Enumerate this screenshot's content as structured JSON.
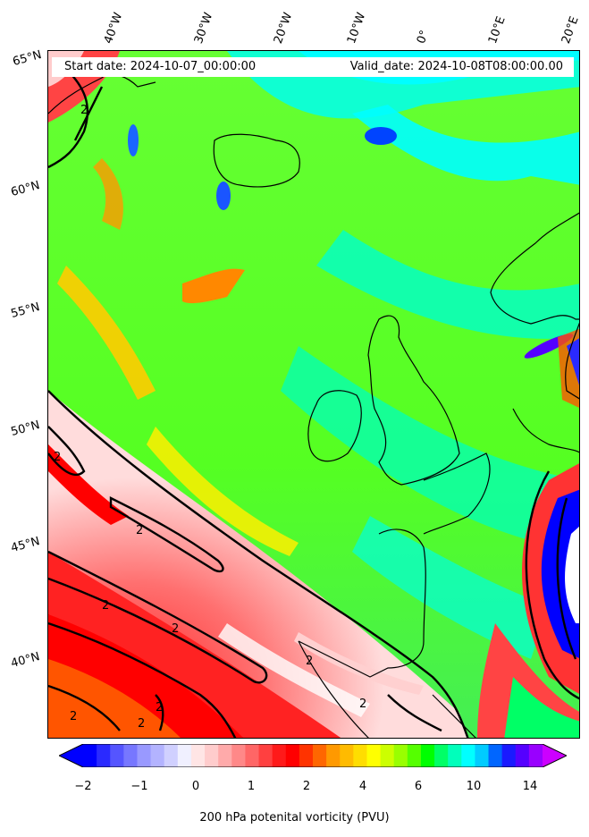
{
  "header": {
    "start_date": "Start date: 2024-10-07_00:00:00",
    "valid_date": "Valid_date: 2024-10-08T08:00:00.00"
  },
  "longitude_labels": [
    "40°W",
    "30°W",
    "20°W",
    "10°W",
    "0°",
    "10°E",
    "20°E"
  ],
  "latitude_labels": [
    "65°N",
    "60°N",
    "55°N",
    "50°N",
    "45°N",
    "40°N"
  ],
  "contour_labels": [
    "2",
    "2",
    "2",
    "2",
    "2",
    "2",
    "2",
    "2",
    "2",
    "2"
  ],
  "colorbar": {
    "title": "200 hPa potenital vorticity (PVU)",
    "tick_labels": [
      "−2",
      "−1",
      "0",
      "1",
      "2",
      "4",
      "6",
      "10",
      "14"
    ],
    "colors": [
      "#0000ff",
      "#2a2aff",
      "#5555ff",
      "#7777ff",
      "#9999ff",
      "#b3b3ff",
      "#d0d0ff",
      "#f0f0ff",
      "#ffe5e5",
      "#ffcccc",
      "#ffaaaa",
      "#ff8888",
      "#ff6666",
      "#ff4040",
      "#ff1a1a",
      "#ff0000",
      "#ff3300",
      "#ff6600",
      "#ff9900",
      "#ffbb00",
      "#ffdd00",
      "#ffff00",
      "#ccff00",
      "#99ff00",
      "#55ff00",
      "#00ff00",
      "#00ff66",
      "#00ffbb",
      "#00ffff",
      "#00ccff",
      "#0066ff",
      "#1a1aff",
      "#5500ff",
      "#9900ff"
    ],
    "under_color": "#0000ff",
    "over_color": "#cc00ff"
  }
}
